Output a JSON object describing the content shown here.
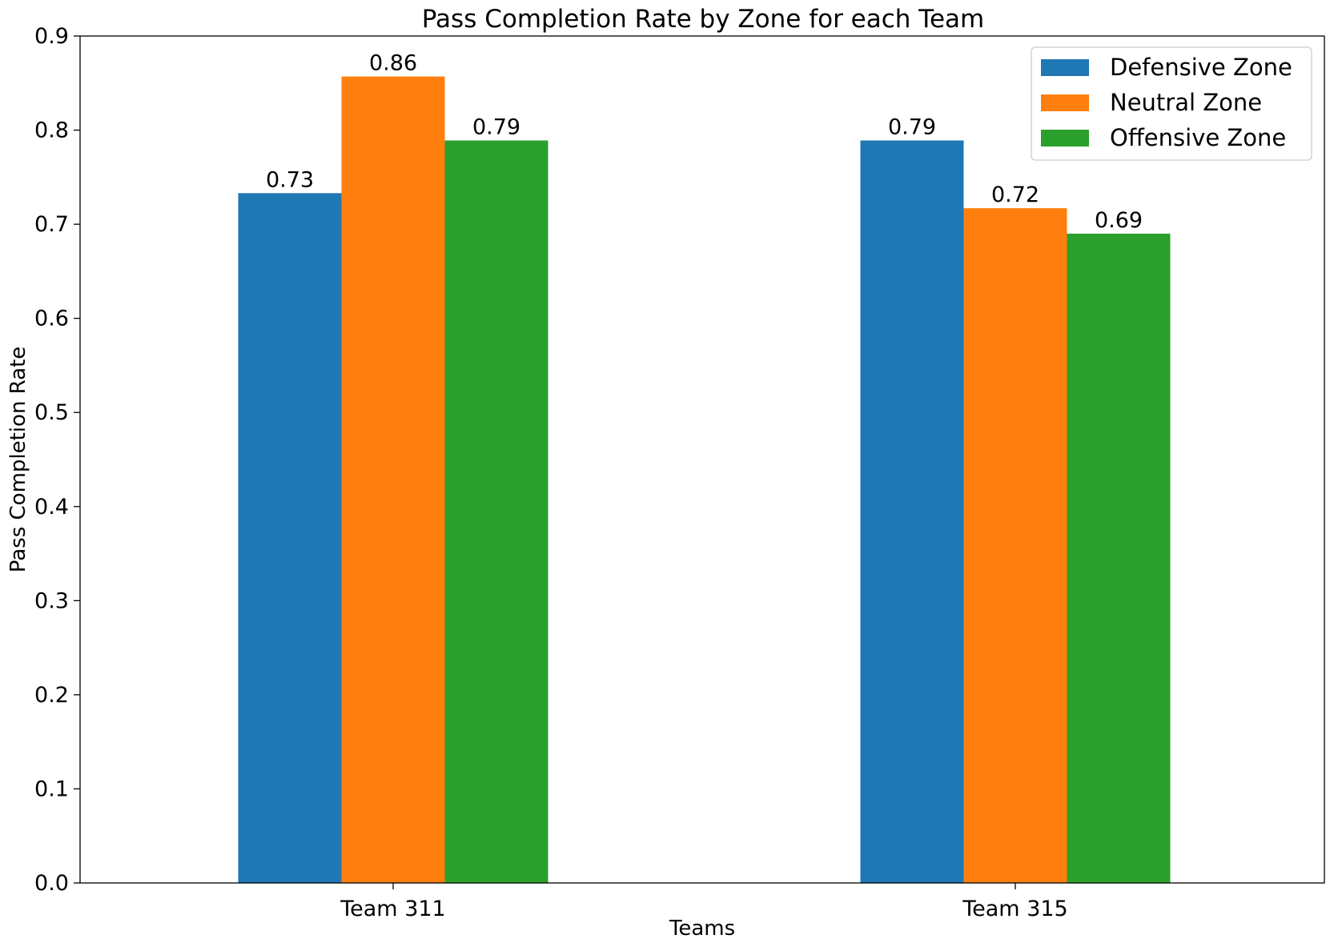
{
  "chart_data": {
    "type": "bar",
    "title": "Pass Completion Rate by Zone for each Team",
    "xlabel": "Teams",
    "ylabel": "Pass Completion Rate",
    "categories": [
      "Team 311",
      "Team 315"
    ],
    "series": [
      {
        "name": "Defensive Zone",
        "color": "#1f77b4",
        "values": [
          0.733,
          0.789
        ],
        "labels": [
          "0.73",
          "0.79"
        ]
      },
      {
        "name": "Neutral Zone",
        "color": "#ff7f0e",
        "values": [
          0.857,
          0.717
        ],
        "labels": [
          "0.86",
          "0.72"
        ]
      },
      {
        "name": "Offensive Zone",
        "color": "#2ca02c",
        "values": [
          0.789,
          0.69
        ],
        "labels": [
          "0.79",
          "0.69"
        ]
      }
    ],
    "ylim": [
      0,
      0.9
    ],
    "yticks": [
      "0.0",
      "0.1",
      "0.2",
      "0.3",
      "0.4",
      "0.5",
      "0.6",
      "0.7",
      "0.8",
      "0.9"
    ],
    "grid": false,
    "legend_position": "top-right"
  }
}
